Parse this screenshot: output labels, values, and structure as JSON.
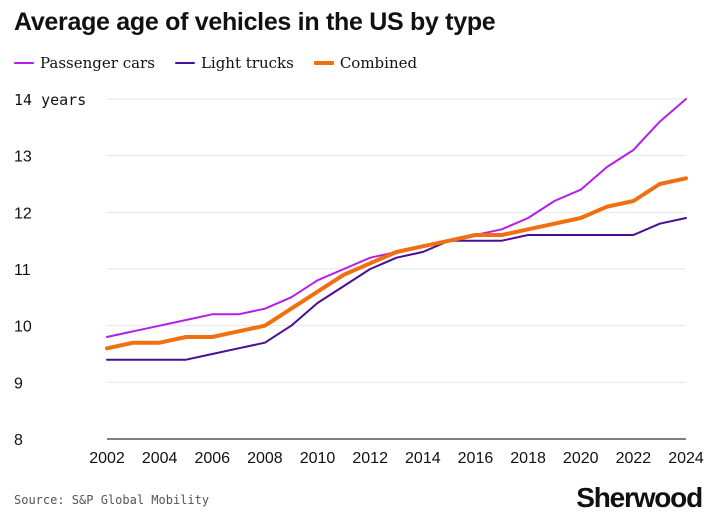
{
  "page": {
    "title": "Average age of vehicles in the US by type",
    "source": "Source: S&P Global Mobility",
    "logo": "Sherwood"
  },
  "chart_data": {
    "type": "line",
    "title": "Average age of vehicles in the US by type",
    "xlabel": "",
    "ylabel": "",
    "x": [
      2002,
      2003,
      2004,
      2005,
      2006,
      2007,
      2008,
      2009,
      2010,
      2011,
      2012,
      2013,
      2014,
      2015,
      2016,
      2017,
      2018,
      2019,
      2020,
      2021,
      2022,
      2023,
      2024
    ],
    "xticks": [
      "2002",
      "2004",
      "2006",
      "2008",
      "2010",
      "2012",
      "2014",
      "2016",
      "2018",
      "2020",
      "2022",
      "2024"
    ],
    "yticks": [
      "8",
      "9",
      "10",
      "11",
      "12",
      "13",
      "14 years"
    ],
    "ylim": [
      8,
      14
    ],
    "xlim": [
      2002,
      2024
    ],
    "grid": "horizontal",
    "legend_position": "top-left",
    "series": [
      {
        "name": "Passenger cars",
        "color": "#b51ee8",
        "values": [
          9.8,
          9.9,
          10.0,
          10.1,
          10.2,
          10.2,
          10.3,
          10.5,
          10.8,
          11.0,
          11.2,
          11.3,
          11.4,
          11.5,
          11.6,
          11.7,
          11.9,
          12.2,
          12.4,
          12.8,
          13.1,
          13.6,
          14.0
        ]
      },
      {
        "name": "Light trucks",
        "color": "#4a0d96",
        "values": [
          9.4,
          9.4,
          9.4,
          9.4,
          9.5,
          9.6,
          9.7,
          10.0,
          10.4,
          10.7,
          11.0,
          11.2,
          11.3,
          11.5,
          11.5,
          11.5,
          11.6,
          11.6,
          11.6,
          11.6,
          11.6,
          11.8,
          11.9
        ]
      },
      {
        "name": "Combined",
        "color": "#f07011",
        "values": [
          9.6,
          9.7,
          9.7,
          9.8,
          9.8,
          9.9,
          10.0,
          10.3,
          10.6,
          10.9,
          11.1,
          11.3,
          11.4,
          11.5,
          11.6,
          11.6,
          11.7,
          11.8,
          11.9,
          12.1,
          12.2,
          12.5,
          12.6
        ]
      }
    ]
  }
}
